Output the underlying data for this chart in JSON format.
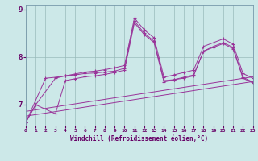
{
  "xlabel": "Windchill (Refroidissement éolien,°C)",
  "bg_color": "#cce8e8",
  "line_color": "#993399",
  "grid_color": "#99bbbb",
  "xlim": [
    0,
    23
  ],
  "ylim": [
    6.55,
    9.1
  ],
  "yticks": [
    7,
    8,
    9
  ],
  "xticks": [
    0,
    1,
    2,
    3,
    4,
    5,
    6,
    7,
    8,
    9,
    10,
    11,
    12,
    13,
    14,
    15,
    16,
    17,
    18,
    19,
    20,
    21,
    22,
    23
  ],
  "series": [
    {
      "x": [
        0,
        1,
        3,
        4,
        5,
        6,
        7,
        8,
        9,
        10,
        11,
        12,
        13,
        14,
        15,
        16,
        17,
        18,
        19,
        20,
        21,
        22,
        23
      ],
      "y": [
        6.62,
        6.99,
        7.55,
        7.6,
        7.64,
        7.68,
        7.7,
        7.73,
        7.77,
        7.82,
        8.82,
        8.57,
        8.4,
        7.57,
        7.62,
        7.67,
        7.72,
        8.22,
        8.3,
        8.38,
        8.27,
        7.65,
        7.55
      ],
      "marker": true
    },
    {
      "x": [
        0,
        1,
        3,
        4,
        5,
        6,
        7,
        8,
        9,
        10,
        11,
        12,
        13,
        14,
        15,
        16,
        17,
        18,
        19,
        20,
        21,
        22,
        23
      ],
      "y": [
        6.62,
        6.99,
        6.8,
        7.5,
        7.54,
        7.58,
        7.6,
        7.63,
        7.67,
        7.72,
        8.72,
        8.47,
        8.3,
        7.47,
        7.52,
        7.57,
        7.62,
        8.12,
        8.2,
        8.28,
        8.17,
        7.55,
        7.45
      ],
      "marker": true
    },
    {
      "x": [
        0,
        2,
        3,
        4,
        5,
        6,
        7,
        8,
        9,
        10,
        11,
        12,
        13,
        14,
        15,
        16,
        17,
        18,
        19,
        20,
        21,
        22,
        23
      ],
      "y": [
        6.62,
        7.55,
        7.57,
        7.6,
        7.62,
        7.65,
        7.66,
        7.68,
        7.7,
        7.76,
        8.76,
        8.5,
        8.33,
        7.5,
        7.52,
        7.55,
        7.6,
        8.12,
        8.22,
        8.3,
        8.2,
        7.57,
        7.47
      ],
      "marker": true
    },
    {
      "x": [
        0,
        23
      ],
      "y": [
        6.85,
        7.58
      ],
      "marker": false
    },
    {
      "x": [
        0,
        23
      ],
      "y": [
        6.75,
        7.48
      ],
      "marker": false
    }
  ]
}
